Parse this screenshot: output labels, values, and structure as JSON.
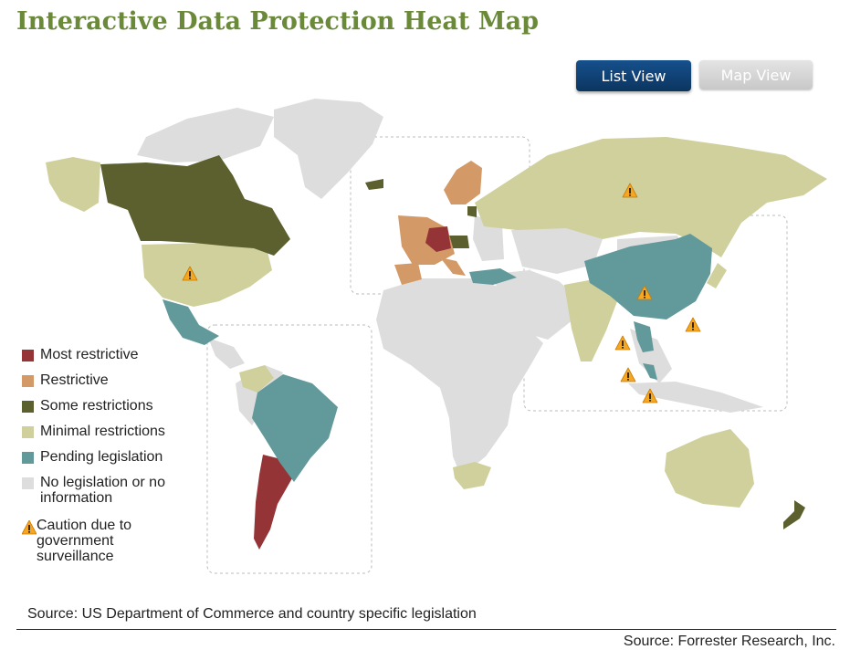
{
  "title": "Interactive Data Protection Heat Map",
  "view_buttons": {
    "list_label": "List View",
    "map_label": "Map View",
    "active": "List View"
  },
  "colors": {
    "most_restrictive": "#943436",
    "restrictive": "#d39a68",
    "some_restrictions": "#5c5f2e",
    "minimal_restrictions": "#cfd09c",
    "pending_legislation": "#62999a",
    "no_legislation": "#dddddd",
    "caution": "#f5a623",
    "title": "#6a8a3a",
    "button_active": "#0e4377"
  },
  "legend": {
    "items": [
      {
        "label": "Most restrictive",
        "color": "#943436"
      },
      {
        "label": "Restrictive",
        "color": "#d39a68"
      },
      {
        "label": "Some restrictions",
        "color": "#5c5f2e"
      },
      {
        "label": "Minimal restrictions",
        "color": "#cfd09c"
      },
      {
        "label": "Pending legislation",
        "color": "#62999a"
      },
      {
        "label": "No legislation or no information",
        "color": "#dddddd"
      }
    ],
    "caution_label": "Caution due to government surveillance",
    "caution_icon": "warning-triangle-icon"
  },
  "caution_regions": [
    "United States",
    "Russia",
    "China",
    "Taiwan",
    "Thailand",
    "Malaysia",
    "Indonesia"
  ],
  "sources": {
    "left": "Source: US Department of Commerce and country specific legislation",
    "right": "Source: Forrester Research, Inc."
  }
}
